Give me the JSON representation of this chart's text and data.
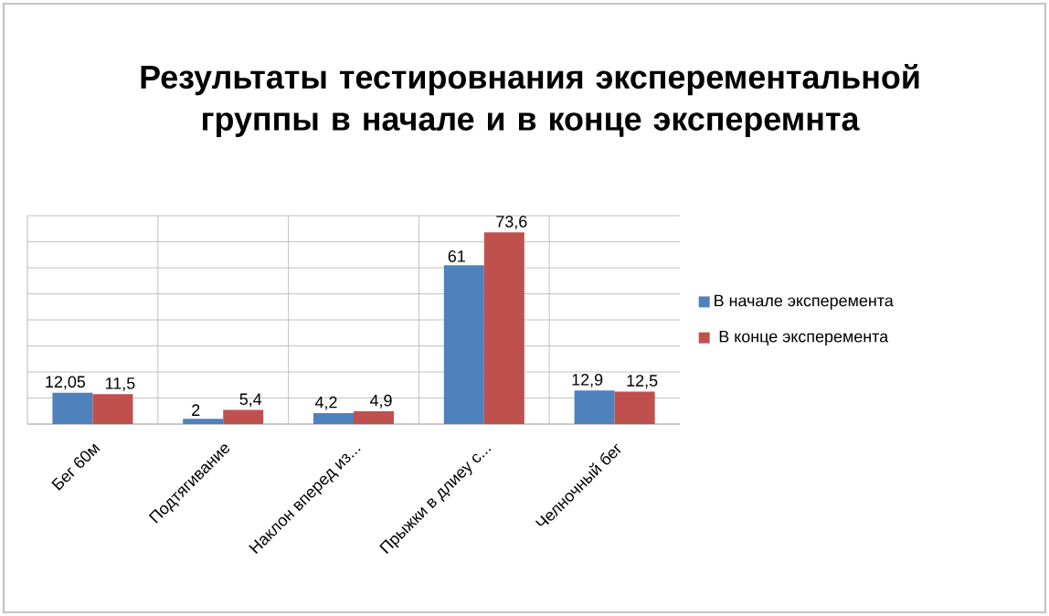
{
  "chart_data": {
    "type": "bar",
    "title": "Результаты тестировнания эксперементальной группы в начале и в конце эксперемнта",
    "categories": [
      "Бег 60м",
      "Подтягивание",
      "Наклон вперед из...",
      "Прыжки в длиеу с...",
      "Челночный бег"
    ],
    "series": [
      {
        "name": "В начале эксперемента",
        "color": "#4f81bd",
        "values": [
          12.05,
          2,
          4.2,
          61,
          12.9
        ],
        "value_labels": [
          "12,05",
          "2",
          "4,2",
          "61",
          "12,9"
        ]
      },
      {
        "name": "В конце эксперемента",
        "color": "#c0504d",
        "values": [
          11.5,
          5.4,
          4.9,
          73.6,
          12.5
        ],
        "value_labels": [
          "11,5",
          "5,4",
          "4,9",
          "73,6",
          "12,5"
        ]
      }
    ],
    "ylim": [
      0,
      80
    ],
    "yticks": [
      {
        "value": 0,
        "label": null
      },
      {
        "value": 10,
        "label": null
      },
      {
        "value": 20,
        "label": null
      },
      {
        "value": 30,
        "label": null
      },
      {
        "value": 40,
        "label": null
      },
      {
        "value": 50,
        "label": null
      },
      {
        "value": 60,
        "label": null
      },
      {
        "value": 70,
        "label": null
      },
      {
        "value": 80,
        "label": null
      }
    ],
    "grid": true,
    "legend": "right",
    "tick_labels": "x"
  }
}
